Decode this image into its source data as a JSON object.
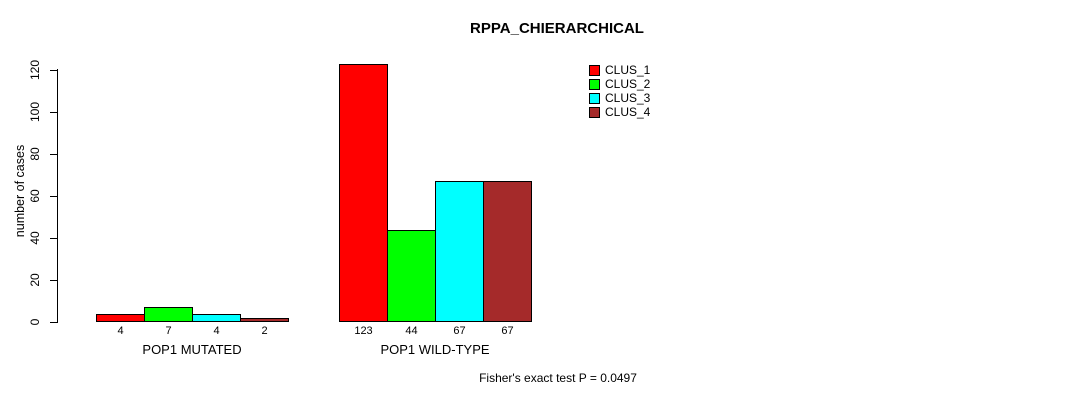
{
  "chart_data": {
    "type": "bar",
    "title": "RPPA_CHIERARCHICAL",
    "xlabel": "",
    "ylabel": "number of cases",
    "categories": [
      "POP1 MUTATED",
      "POP1 WILD-TYPE"
    ],
    "series": [
      {
        "name": "CLUS_1",
        "color": "#ff0000",
        "values": [
          4,
          123
        ]
      },
      {
        "name": "CLUS_2",
        "color": "#00ff00",
        "values": [
          7,
          44
        ]
      },
      {
        "name": "CLUS_3",
        "color": "#00ffff",
        "values": [
          4,
          67
        ]
      },
      {
        "name": "CLUS_4",
        "color": "#a52a2a",
        "values": [
          2,
          67
        ]
      }
    ],
    "bar_value_labels_shown": true,
    "yticks": [
      0,
      20,
      40,
      60,
      80,
      100,
      120
    ],
    "ylim": [
      0,
      123
    ],
    "grid": false,
    "legend_position": "top-right",
    "legend_entries": [
      "CLUS_1",
      "CLUS_2",
      "CLUS_3",
      "CLUS_4"
    ],
    "annotation": "Fisher's exact test P = 0.0497",
    "axis_color": "#000000",
    "bar_border_color": "#000000",
    "background": "#ffffff"
  }
}
